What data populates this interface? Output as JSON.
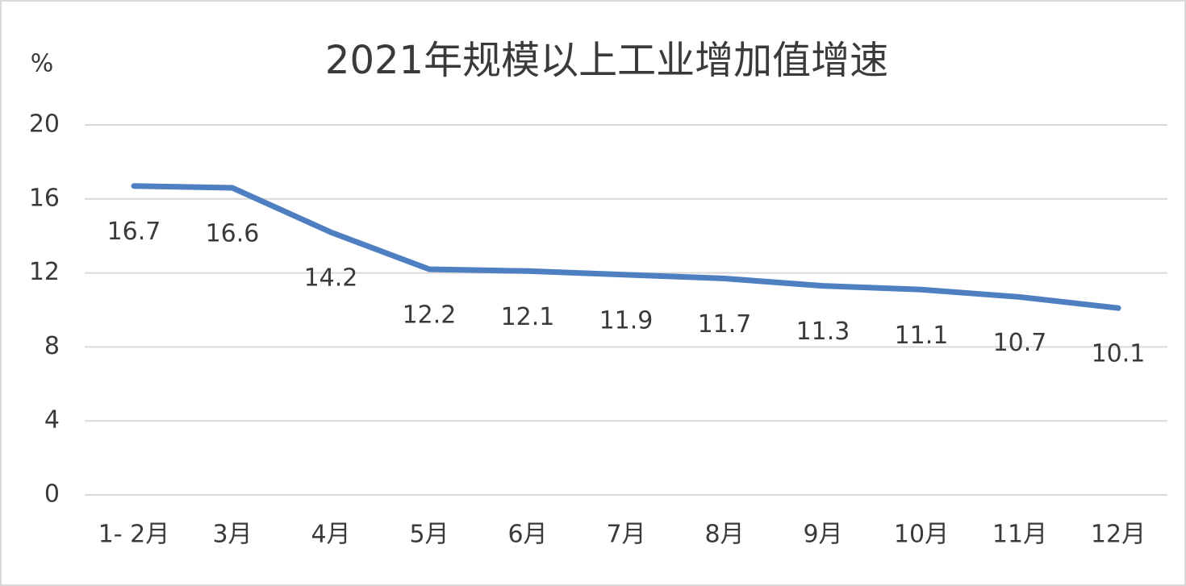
{
  "chart_data": {
    "type": "line",
    "title": "2021年规模以上工业增加值增速",
    "y_label": "%",
    "categories": [
      "1- 2月",
      "3月",
      "4月",
      "5月",
      "6月",
      "7月",
      "8月",
      "9月",
      "10月",
      "11月",
      "12月"
    ],
    "series": [
      {
        "name": "规模以上工业增加值增速",
        "color": "#4e7fc1",
        "values": [
          16.7,
          16.6,
          14.2,
          12.2,
          12.1,
          11.9,
          11.7,
          11.3,
          11.1,
          10.7,
          10.1
        ]
      }
    ],
    "ylim": [
      0,
      20
    ],
    "yticks": [
      0,
      4,
      8,
      12,
      16,
      20
    ],
    "grid": true
  }
}
